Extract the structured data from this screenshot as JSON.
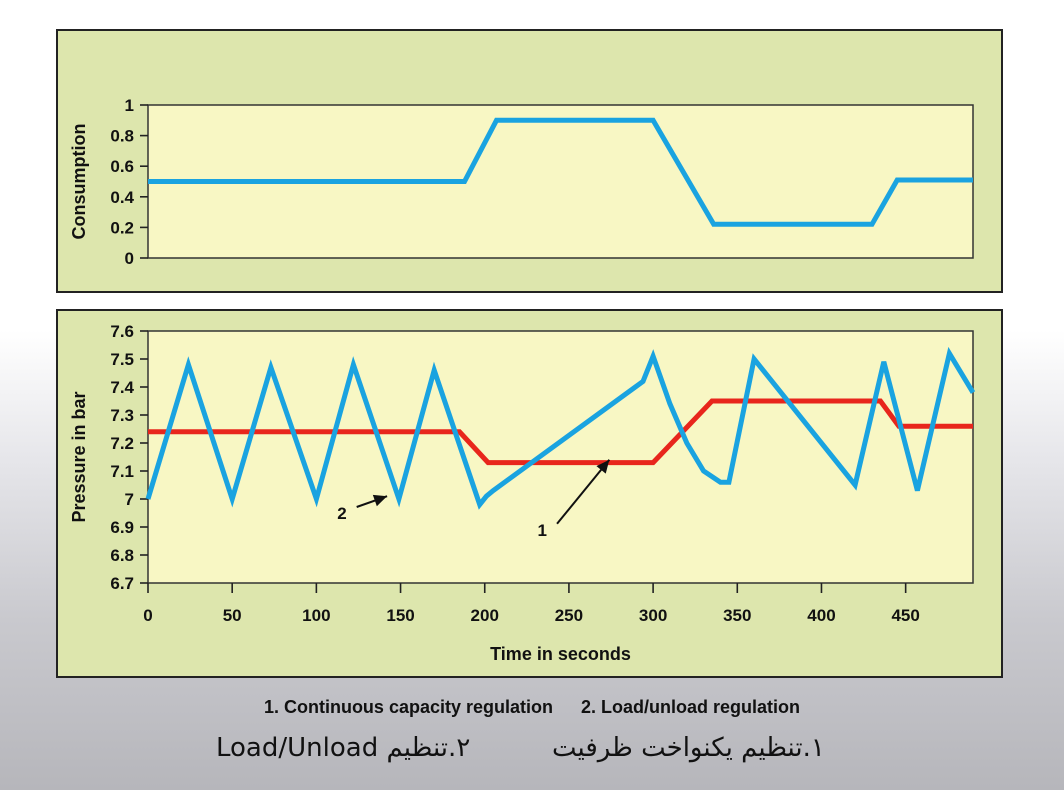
{
  "chart_data": [
    {
      "type": "line",
      "ylabel": "Consumption",
      "xlim": [
        0,
        490
      ],
      "ylim": [
        0,
        1
      ],
      "yticks": [
        "1",
        "0.8",
        "0.6",
        "0.4",
        "0.2",
        "0"
      ],
      "ytick_values": [
        1,
        0.8,
        0.6,
        0.4,
        0.2,
        0
      ],
      "grid": false,
      "series": [
        {
          "color": "#1aa3e0",
          "x": [
            0,
            188,
            207,
            300,
            336,
            430,
            445,
            490
          ],
          "y": [
            0.5,
            0.5,
            0.9,
            0.9,
            0.22,
            0.22,
            0.51,
            0.51
          ]
        }
      ]
    },
    {
      "type": "line",
      "xlabel": "Time in seconds",
      "ylabel": "Pressure in bar",
      "xlim": [
        0,
        490
      ],
      "ylim": [
        6.7,
        7.6
      ],
      "xticks": [
        "0",
        "50",
        "100",
        "150",
        "200",
        "250",
        "300",
        "350",
        "400",
        "450"
      ],
      "xtick_values": [
        0,
        50,
        100,
        150,
        200,
        250,
        300,
        350,
        400,
        450
      ],
      "yticks": [
        "7.6",
        "7.5",
        "7.4",
        "7.3",
        "7.2",
        "7.1",
        "7",
        "6.9",
        "6.8",
        "6.7"
      ],
      "ytick_values": [
        7.6,
        7.5,
        7.4,
        7.3,
        7.2,
        7.1,
        7.0,
        6.9,
        6.8,
        6.7
      ],
      "grid": false,
      "series": [
        {
          "label_on_chart": "1",
          "color": "#e8261c",
          "x": [
            0,
            185,
            202,
            300,
            335,
            435,
            446,
            490
          ],
          "y": [
            7.24,
            7.24,
            7.13,
            7.13,
            7.35,
            7.35,
            7.26,
            7.26
          ]
        },
        {
          "label_on_chart": "2",
          "color": "#1aa3e0",
          "x": [
            0,
            24,
            50,
            73,
            100,
            122,
            149,
            170,
            197,
            201,
            205,
            294,
            300,
            310,
            320,
            330,
            340,
            345,
            360,
            420,
            437,
            457,
            476,
            490
          ],
          "y": [
            7.0,
            7.48,
            7.0,
            7.47,
            7.0,
            7.48,
            7.0,
            7.46,
            6.98,
            7.01,
            7.03,
            7.42,
            7.51,
            7.34,
            7.2,
            7.1,
            7.06,
            7.06,
            7.5,
            7.05,
            7.49,
            7.03,
            7.52,
            7.38
          ]
        }
      ],
      "annotations": [
        {
          "text": "1",
          "x": 237,
          "y": 6.89,
          "arrow_to": [
            274,
            7.14
          ]
        },
        {
          "text": "2",
          "x": 118,
          "y": 6.95,
          "arrow_to": [
            142,
            7.01
          ]
        }
      ]
    }
  ],
  "legend": {
    "item1": "1. Continuous capacity regulation",
    "item2": "2. Load/unload regulation"
  },
  "persian_caption": {
    "item1": "۱.تنظیم یکنواخت ظرفیت",
    "item2": "۲.تنظیم Load/Unload"
  }
}
